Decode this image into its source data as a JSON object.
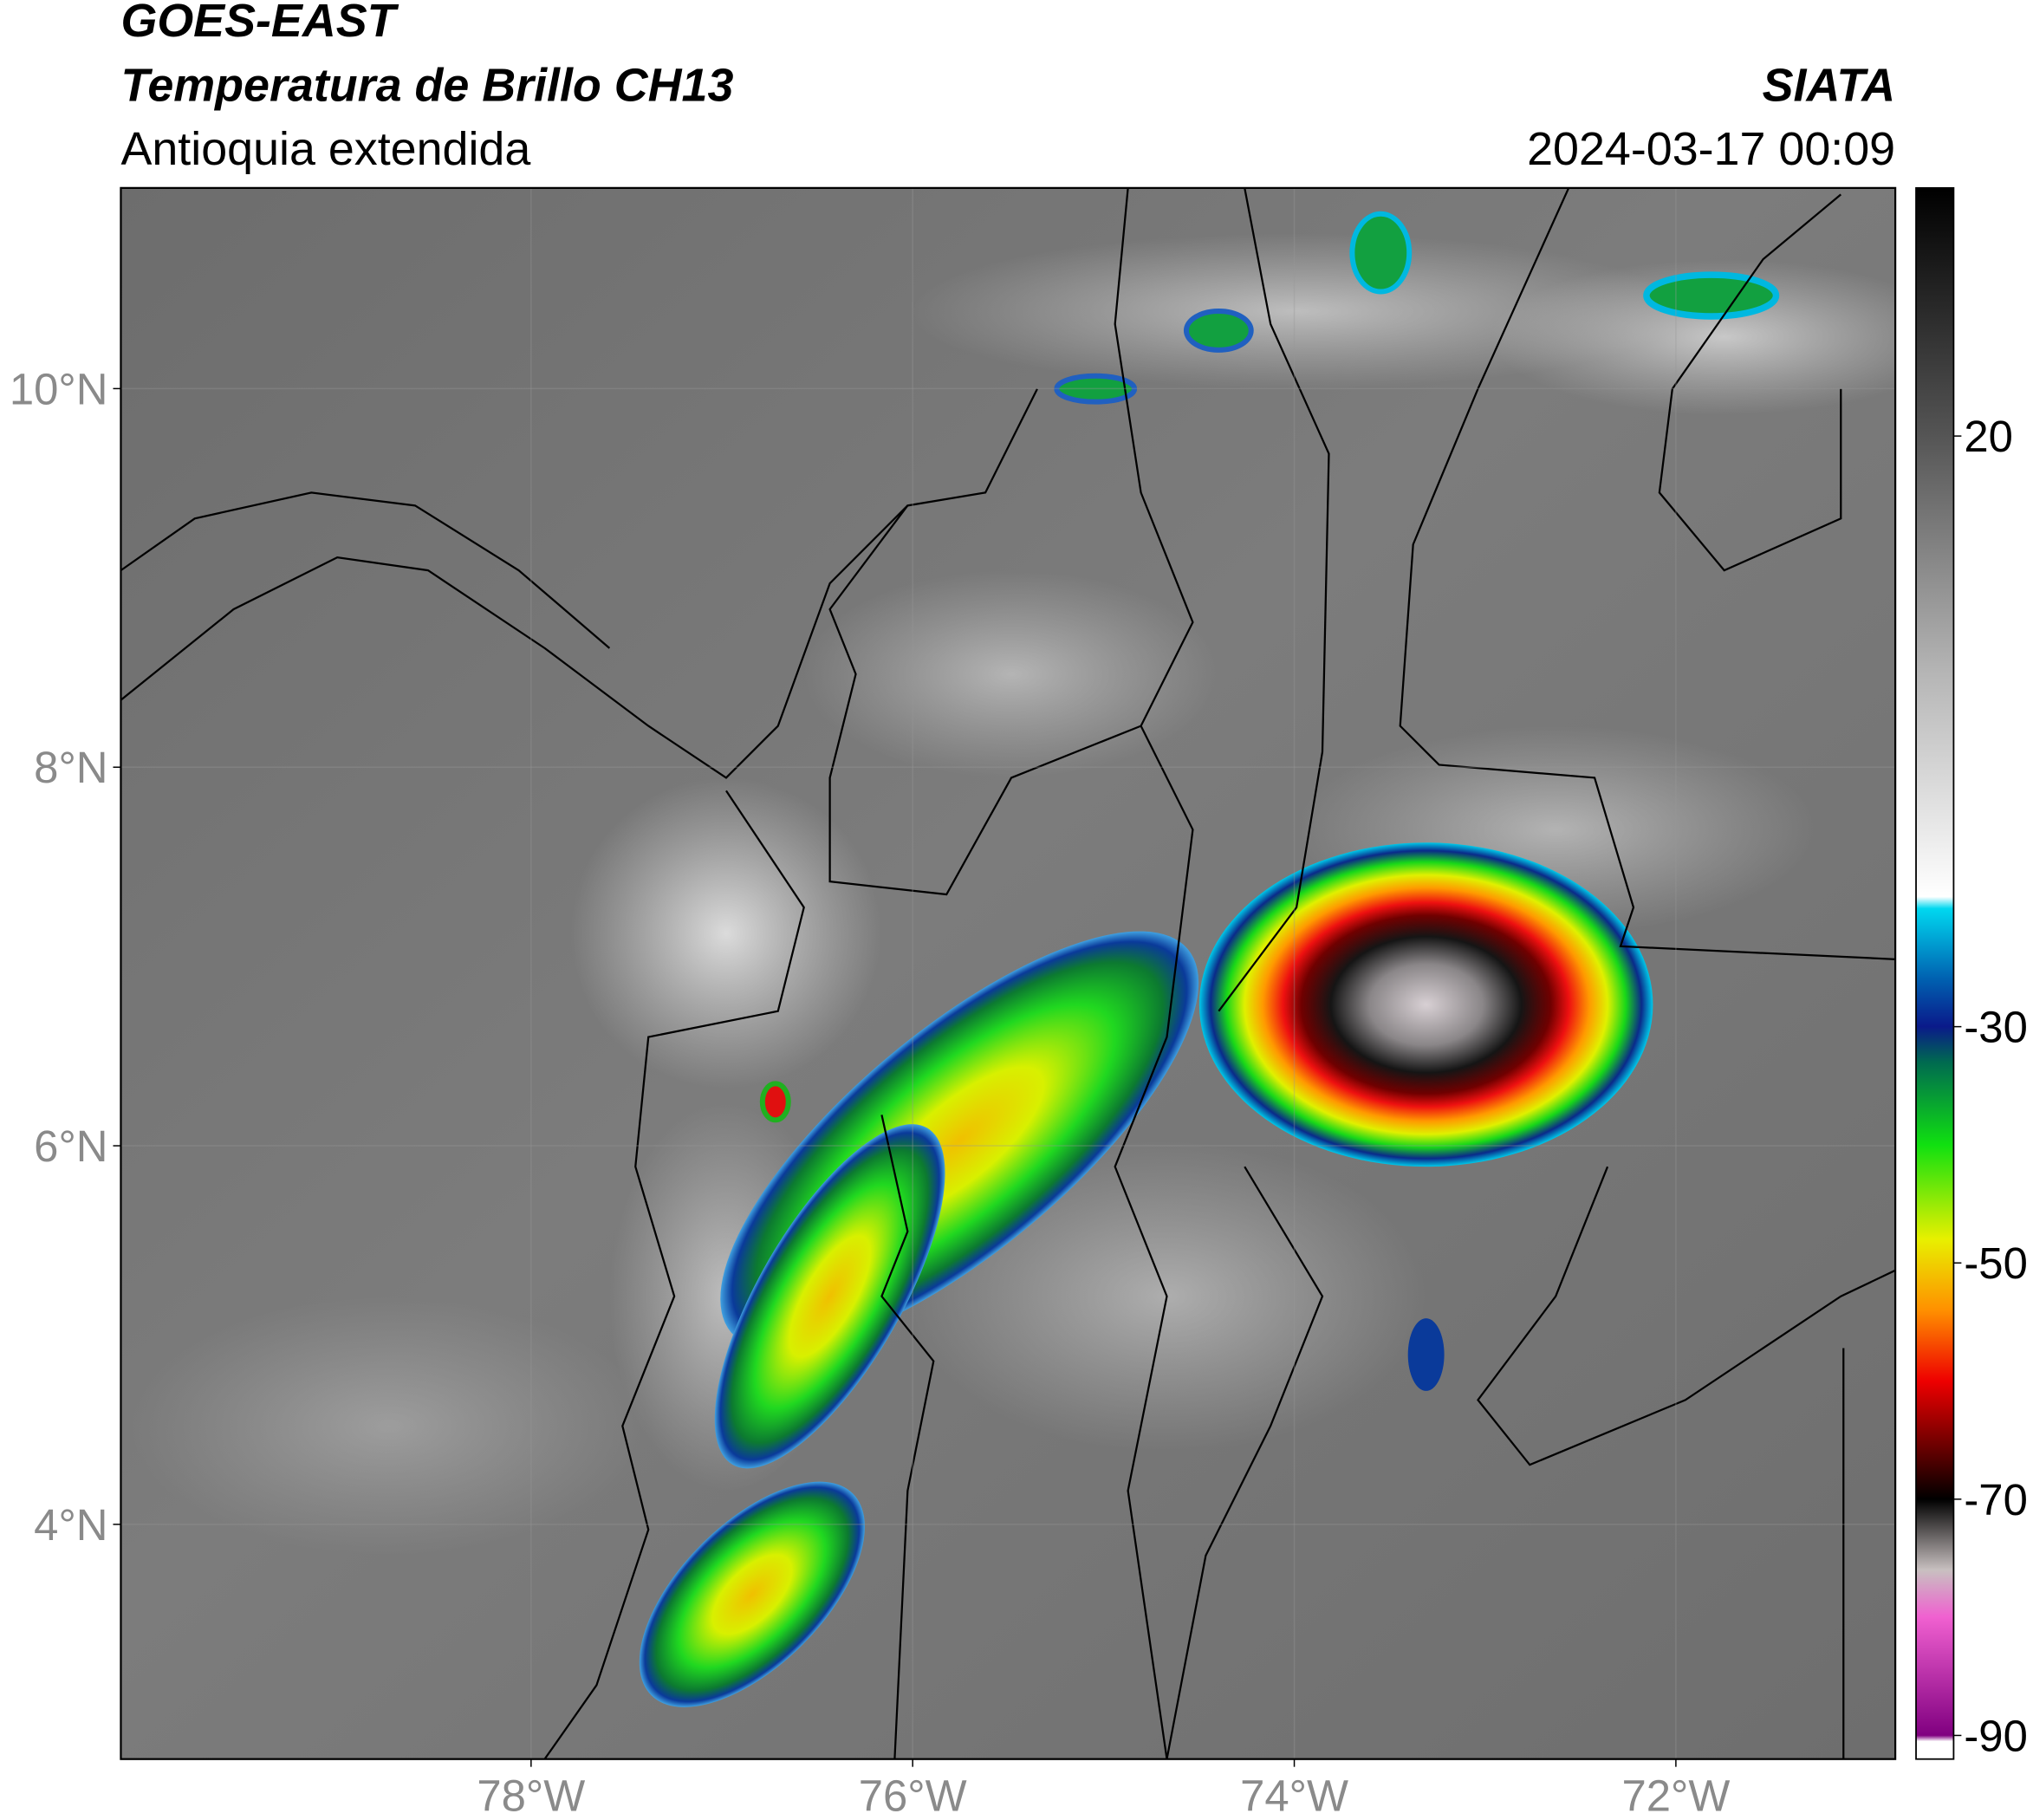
{
  "header": {
    "title": "GOES-EAST",
    "subtitle": "Temperatura de Brillo CH13",
    "region": "Antioquia extendida",
    "agency": "SIATA",
    "datetime": "2024-03-17 00:09"
  },
  "map": {
    "xlim": [
      -80.15,
      -70.85
    ],
    "ylim": [
      2.76,
      11.06
    ],
    "xticks": [
      {
        "value": -78,
        "label": "78°W"
      },
      {
        "value": -76,
        "label": "76°W"
      },
      {
        "value": -74,
        "label": "74°W"
      },
      {
        "value": -72,
        "label": "72°W"
      }
    ],
    "yticks": [
      {
        "value": 4,
        "label": "4°N"
      },
      {
        "value": 6,
        "label": "6°N"
      },
      {
        "value": 8,
        "label": "8°N"
      },
      {
        "value": 10,
        "label": "10°N"
      }
    ],
    "grid": true
  },
  "colorbar": {
    "clim": [
      -92,
      41
    ],
    "ticks": [
      20,
      -30,
      -50,
      -70,
      -90
    ],
    "stops": [
      {
        "value": 41,
        "color": "#000000"
      },
      {
        "value": 20,
        "color": "#555555"
      },
      {
        "value": 0,
        "color": "#b5b5b5"
      },
      {
        "value": -19,
        "color": "#ffffff"
      },
      {
        "value": -20,
        "color": "#00d8f0"
      },
      {
        "value": -26,
        "color": "#0060b0"
      },
      {
        "value": -30,
        "color": "#0a1a8a"
      },
      {
        "value": -33,
        "color": "#006a50"
      },
      {
        "value": -40,
        "color": "#10e010"
      },
      {
        "value": -48,
        "color": "#e8f000"
      },
      {
        "value": -54,
        "color": "#ff9000"
      },
      {
        "value": -60,
        "color": "#ee0000"
      },
      {
        "value": -66,
        "color": "#600000"
      },
      {
        "value": -70,
        "color": "#000000"
      },
      {
        "value": -76,
        "color": "#c8c0c0"
      },
      {
        "value": -80,
        "color": "#f060d0"
      },
      {
        "value": -90,
        "color": "#800080"
      },
      {
        "value": -90.5,
        "color": "#ffffff"
      }
    ]
  }
}
